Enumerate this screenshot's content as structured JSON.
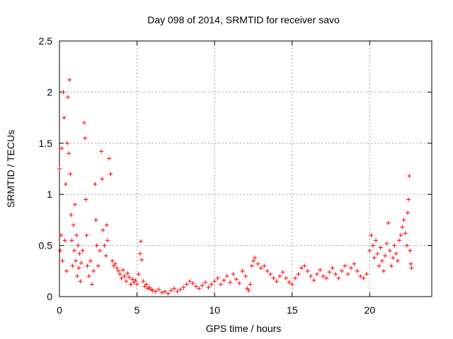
{
  "chart_data": {
    "type": "scatter",
    "title": "Day 098 of 2014, SRMTID for receiver savo",
    "xlabel": "GPS time / hours",
    "ylabel": "SRMTID / TECUs",
    "xlim": [
      0,
      24
    ],
    "ylim": [
      0,
      2.5
    ],
    "x_ticks": [
      0,
      5,
      10,
      15,
      20
    ],
    "x_tick_labels": [
      "0",
      "5",
      "10",
      "15",
      "20"
    ],
    "y_ticks": [
      0,
      0.5,
      1,
      1.5,
      2,
      2.5
    ],
    "y_tick_labels": [
      "0",
      "0.5",
      "1",
      "1.5",
      "2",
      "2.5"
    ],
    "grid": true,
    "marker": "+",
    "series_color": "#ff0000",
    "series": [
      {
        "name": "savo",
        "points": [
          [
            0.0,
            1.25
          ],
          [
            0.05,
            0.45
          ],
          [
            0.1,
            0.6
          ],
          [
            0.15,
            1.45
          ],
          [
            0.2,
            0.35
          ],
          [
            0.25,
            2.0
          ],
          [
            0.3,
            1.75
          ],
          [
            0.35,
            0.55
          ],
          [
            0.4,
            1.1
          ],
          [
            0.45,
            0.25
          ],
          [
            0.5,
            1.5
          ],
          [
            0.55,
            1.95
          ],
          [
            0.6,
            1.4
          ],
          [
            0.65,
            2.12
          ],
          [
            0.7,
            1.2
          ],
          [
            0.75,
            0.8
          ],
          [
            0.8,
            0.55
          ],
          [
            0.85,
            0.3
          ],
          [
            0.9,
            0.7
          ],
          [
            0.95,
            0.45
          ],
          [
            1.0,
            0.9
          ],
          [
            1.05,
            0.35
          ],
          [
            1.1,
            0.6
          ],
          [
            1.15,
            0.2
          ],
          [
            1.2,
            0.5
          ],
          [
            1.25,
            0.28
          ],
          [
            1.3,
            0.42
          ],
          [
            1.35,
            0.15
          ],
          [
            1.4,
            0.33
          ],
          [
            1.5,
            0.45
          ],
          [
            1.6,
            1.7
          ],
          [
            1.65,
            1.55
          ],
          [
            1.7,
            0.95
          ],
          [
            1.75,
            0.6
          ],
          [
            1.8,
            0.3
          ],
          [
            1.9,
            0.2
          ],
          [
            2.0,
            0.35
          ],
          [
            2.1,
            0.12
          ],
          [
            2.2,
            0.25
          ],
          [
            2.3,
            1.1
          ],
          [
            2.35,
            0.75
          ],
          [
            2.4,
            0.5
          ],
          [
            2.5,
            0.3
          ],
          [
            2.6,
            0.45
          ],
          [
            2.7,
            1.42
          ],
          [
            2.75,
            1.15
          ],
          [
            2.8,
            0.65
          ],
          [
            2.9,
            0.5
          ],
          [
            3.0,
            0.4
          ],
          [
            3.05,
            0.7
          ],
          [
            3.1,
            0.55
          ],
          [
            3.2,
            1.35
          ],
          [
            3.3,
            1.2
          ],
          [
            3.4,
            0.35
          ],
          [
            3.5,
            0.3
          ],
          [
            3.6,
            0.32
          ],
          [
            3.7,
            0.28
          ],
          [
            3.8,
            0.25
          ],
          [
            3.9,
            0.22
          ],
          [
            4.0,
            0.18
          ],
          [
            4.1,
            0.26
          ],
          [
            4.2,
            0.2
          ],
          [
            4.3,
            0.15
          ],
          [
            4.4,
            0.23
          ],
          [
            4.5,
            0.19
          ],
          [
            4.6,
            0.12
          ],
          [
            4.7,
            0.17
          ],
          [
            4.8,
            0.14
          ],
          [
            4.9,
            0.16
          ],
          [
            5.0,
            0.12
          ],
          [
            5.1,
            0.22
          ],
          [
            5.2,
            0.42
          ],
          [
            5.25,
            0.54
          ],
          [
            5.3,
            0.36
          ],
          [
            5.4,
            0.15
          ],
          [
            5.5,
            0.1
          ],
          [
            5.6,
            0.12
          ],
          [
            5.7,
            0.08
          ],
          [
            5.8,
            0.09
          ],
          [
            5.9,
            0.07
          ],
          [
            6.0,
            0.06
          ],
          [
            6.2,
            0.05
          ],
          [
            6.4,
            0.07
          ],
          [
            6.6,
            0.04
          ],
          [
            6.8,
            0.05
          ],
          [
            7.0,
            0.03
          ],
          [
            7.2,
            0.06
          ],
          [
            7.4,
            0.08
          ],
          [
            7.6,
            0.05
          ],
          [
            7.8,
            0.07
          ],
          [
            8.0,
            0.09
          ],
          [
            8.2,
            0.12
          ],
          [
            8.4,
            0.15
          ],
          [
            8.6,
            0.13
          ],
          [
            8.8,
            0.1
          ],
          [
            9.0,
            0.08
          ],
          [
            9.2,
            0.11
          ],
          [
            9.4,
            0.14
          ],
          [
            9.6,
            0.09
          ],
          [
            9.8,
            0.12
          ],
          [
            10.0,
            0.15
          ],
          [
            10.2,
            0.18
          ],
          [
            10.4,
            0.12
          ],
          [
            10.6,
            0.16
          ],
          [
            10.8,
            0.2
          ],
          [
            11.0,
            0.14
          ],
          [
            11.2,
            0.22
          ],
          [
            11.4,
            0.17
          ],
          [
            11.6,
            0.13
          ],
          [
            11.8,
            0.25
          ],
          [
            12.0,
            0.2
          ],
          [
            12.1,
            0.08
          ],
          [
            12.2,
            0.06
          ],
          [
            12.3,
            0.12
          ],
          [
            12.4,
            0.3
          ],
          [
            12.5,
            0.35
          ],
          [
            12.6,
            0.38
          ],
          [
            12.8,
            0.32
          ],
          [
            13.0,
            0.28
          ],
          [
            13.2,
            0.3
          ],
          [
            13.4,
            0.25
          ],
          [
            13.6,
            0.22
          ],
          [
            13.8,
            0.18
          ],
          [
            14.0,
            0.15
          ],
          [
            14.2,
            0.2
          ],
          [
            14.4,
            0.24
          ],
          [
            14.6,
            0.18
          ],
          [
            14.8,
            0.14
          ],
          [
            15.0,
            0.12
          ],
          [
            15.2,
            0.18
          ],
          [
            15.4,
            0.22
          ],
          [
            15.6,
            0.28
          ],
          [
            15.8,
            0.3
          ],
          [
            16.0,
            0.25
          ],
          [
            16.2,
            0.2
          ],
          [
            16.4,
            0.16
          ],
          [
            16.6,
            0.22
          ],
          [
            16.8,
            0.26
          ],
          [
            17.0,
            0.2
          ],
          [
            17.2,
            0.18
          ],
          [
            17.4,
            0.24
          ],
          [
            17.6,
            0.28
          ],
          [
            17.8,
            0.22
          ],
          [
            18.0,
            0.18
          ],
          [
            18.2,
            0.25
          ],
          [
            18.4,
            0.3
          ],
          [
            18.6,
            0.22
          ],
          [
            18.8,
            0.28
          ],
          [
            19.0,
            0.32
          ],
          [
            19.2,
            0.25
          ],
          [
            19.4,
            0.2
          ],
          [
            19.6,
            0.18
          ],
          [
            19.8,
            0.22
          ],
          [
            20.0,
            0.45
          ],
          [
            20.1,
            0.6
          ],
          [
            20.2,
            0.5
          ],
          [
            20.3,
            0.38
          ],
          [
            20.4,
            0.55
          ],
          [
            20.5,
            0.42
          ],
          [
            20.6,
            0.3
          ],
          [
            20.7,
            0.48
          ],
          [
            20.8,
            0.35
          ],
          [
            20.9,
            0.25
          ],
          [
            21.0,
            0.4
          ],
          [
            21.1,
            0.52
          ],
          [
            21.2,
            0.72
          ],
          [
            21.3,
            0.45
          ],
          [
            21.4,
            0.3
          ],
          [
            21.5,
            0.38
          ],
          [
            21.6,
            0.5
          ],
          [
            21.7,
            0.42
          ],
          [
            21.8,
            0.35
          ],
          [
            21.9,
            0.55
          ],
          [
            22.0,
            0.6
          ],
          [
            22.1,
            0.68
          ],
          [
            22.2,
            0.75
          ],
          [
            22.3,
            0.62
          ],
          [
            22.4,
            0.5
          ],
          [
            22.45,
            0.82
          ],
          [
            22.5,
            0.95
          ],
          [
            22.55,
            1.18
          ],
          [
            22.6,
            0.45
          ],
          [
            22.65,
            0.32
          ],
          [
            22.7,
            0.28
          ]
        ]
      }
    ]
  }
}
